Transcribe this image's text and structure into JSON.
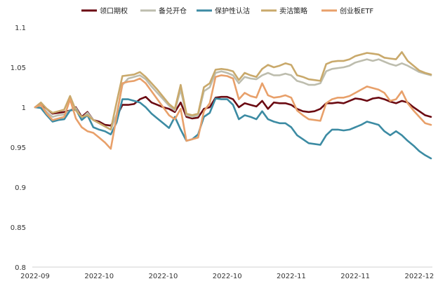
{
  "chart_data": {
    "type": "line",
    "ylim": [
      0.8,
      1.1
    ],
    "yticks": [
      "1.1",
      "1.05",
      "1",
      "0.95",
      "0.9",
      "0.85",
      "0.8"
    ],
    "ytick_values": [
      1.1,
      1.05,
      1.0,
      0.95,
      0.9,
      0.85,
      0.8
    ],
    "xtick_labels": [
      "2022-09",
      "2022-10",
      "2022-10",
      "2022-10",
      "2022-11",
      "2022-11",
      "2022-12"
    ],
    "xtick_index": [
      0,
      11,
      22,
      33,
      44,
      55,
      66
    ],
    "series": [
      {
        "name": "领口期权",
        "color": "#6b0a12",
        "values": [
          1.0,
          1.004,
          0.998,
          0.992,
          0.993,
          0.994,
          0.996,
          1.0,
          0.988,
          0.994,
          0.984,
          0.982,
          0.978,
          0.977,
          0.988,
          1.003,
          1.003,
          1.004,
          1.01,
          1.013,
          1.006,
          1.003,
          1.0,
          0.998,
          0.994,
          1.006,
          0.988,
          0.986,
          0.987,
          0.998,
          1.0,
          1.012,
          1.013,
          1.013,
          1.01,
          1.0,
          1.005,
          1.003,
          1.001,
          1.008,
          0.998,
          1.006,
          1.005,
          1.005,
          1.003,
          0.998,
          0.995,
          0.994,
          0.995,
          0.998,
          1.005,
          1.005,
          1.006,
          1.005,
          1.008,
          1.011,
          1.01,
          1.008,
          1.011,
          1.012,
          1.01,
          1.007,
          1.005,
          1.008,
          1.006,
          1.0,
          0.995,
          0.99,
          0.988
        ]
      },
      {
        "name": "备兑开仓",
        "color": "#bdbdae",
        "values": [
          1.0,
          1.002,
          0.994,
          0.988,
          0.99,
          0.991,
          0.996,
          0.999,
          0.986,
          0.993,
          0.984,
          0.98,
          0.976,
          0.972,
          0.991,
          1.028,
          1.036,
          1.038,
          1.04,
          1.035,
          1.026,
          1.018,
          1.01,
          1.002,
          0.996,
          1.022,
          0.99,
          0.988,
          0.99,
          1.02,
          1.025,
          1.043,
          1.045,
          1.043,
          1.04,
          1.03,
          1.038,
          1.036,
          1.035,
          1.04,
          1.043,
          1.04,
          1.04,
          1.042,
          1.04,
          1.033,
          1.031,
          1.028,
          1.028,
          1.03,
          1.045,
          1.048,
          1.049,
          1.05,
          1.052,
          1.056,
          1.058,
          1.06,
          1.058,
          1.06,
          1.057,
          1.054,
          1.052,
          1.055,
          1.052,
          1.048,
          1.044,
          1.042,
          1.04
        ]
      },
      {
        "name": "保护性认沽",
        "color": "#3c8ba3",
        "values": [
          1.0,
          0.999,
          0.99,
          0.982,
          0.984,
          0.985,
          0.996,
          0.997,
          0.984,
          0.99,
          0.975,
          0.972,
          0.97,
          0.966,
          0.981,
          1.01,
          1.01,
          1.008,
          1.006,
          1.0,
          0.992,
          0.986,
          0.98,
          0.974,
          0.988,
          0.972,
          0.958,
          0.96,
          0.966,
          0.988,
          0.993,
          1.011,
          1.01,
          1.01,
          1.003,
          0.985,
          0.99,
          0.988,
          0.985,
          0.995,
          0.985,
          0.982,
          0.98,
          0.98,
          0.975,
          0.965,
          0.96,
          0.955,
          0.954,
          0.953,
          0.965,
          0.972,
          0.972,
          0.971,
          0.972,
          0.975,
          0.978,
          0.982,
          0.98,
          0.978,
          0.97,
          0.965,
          0.97,
          0.965,
          0.958,
          0.952,
          0.945,
          0.94,
          0.936
        ]
      },
      {
        "name": "卖沽策略",
        "color": "#c9a96b",
        "values": [
          1.0,
          1.006,
          0.998,
          0.993,
          0.995,
          0.997,
          1.014,
          0.996,
          0.988,
          0.99,
          0.984,
          0.98,
          0.976,
          0.972,
          1.006,
          1.039,
          1.04,
          1.041,
          1.044,
          1.038,
          1.03,
          1.022,
          1.013,
          1.004,
          0.998,
          1.028,
          0.992,
          0.99,
          0.992,
          1.025,
          1.03,
          1.047,
          1.048,
          1.047,
          1.045,
          1.034,
          1.043,
          1.04,
          1.038,
          1.048,
          1.053,
          1.05,
          1.052,
          1.055,
          1.053,
          1.04,
          1.038,
          1.035,
          1.034,
          1.033,
          1.054,
          1.057,
          1.058,
          1.058,
          1.06,
          1.064,
          1.066,
          1.068,
          1.067,
          1.066,
          1.062,
          1.061,
          1.06,
          1.069,
          1.058,
          1.052,
          1.046,
          1.043,
          1.041
        ]
      },
      {
        "name": "创业板ETF",
        "color": "#e8a06a",
        "values": [
          1.0,
          1.003,
          0.992,
          0.984,
          0.986,
          0.988,
          1.01,
          0.986,
          0.975,
          0.97,
          0.968,
          0.962,
          0.956,
          0.948,
          0.988,
          1.03,
          1.032,
          1.033,
          1.036,
          1.03,
          1.02,
          1.01,
          1.0,
          0.99,
          0.985,
          0.998,
          0.958,
          0.96,
          0.962,
          0.995,
          1.005,
          1.038,
          1.04,
          1.039,
          1.036,
          1.01,
          1.018,
          1.014,
          1.012,
          1.03,
          1.015,
          1.012,
          1.013,
          1.015,
          1.012,
          0.996,
          0.99,
          0.985,
          0.984,
          0.983,
          1.005,
          1.01,
          1.012,
          1.012,
          1.014,
          1.018,
          1.022,
          1.026,
          1.024,
          1.022,
          1.018,
          1.008,
          1.01,
          1.02,
          1.005,
          0.996,
          0.988,
          0.98,
          0.978
        ]
      }
    ]
  }
}
